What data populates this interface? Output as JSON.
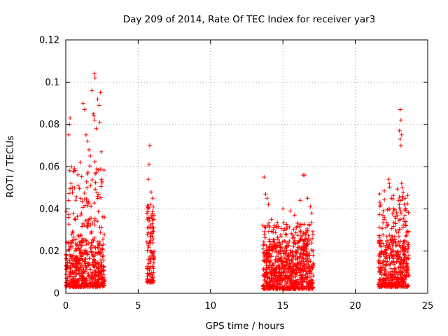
{
  "chart_data": {
    "type": "scatter",
    "title": "Day 209 of 2014, Rate Of TEC Index for receiver yar3",
    "xlabel": "GPS time / hours",
    "ylabel": "ROTI / TECUs",
    "xlim": [
      0,
      25
    ],
    "ylim": [
      0,
      0.12
    ],
    "xticks": [
      0,
      5,
      10,
      15,
      20,
      25
    ],
    "xtick_labels": [
      "0",
      "5",
      "10",
      "15",
      "20",
      "25"
    ],
    "yticks": [
      0,
      0.02,
      0.04,
      0.06,
      0.08,
      0.1,
      0.12
    ],
    "ytick_labels": [
      "0",
      "0.02",
      "0.04",
      "0.06",
      "0.08",
      "0.1",
      "0.12"
    ],
    "grid": true,
    "marker": "+",
    "color": "#ff0000",
    "series": [
      {
        "name": "ROTI",
        "clusters": [
          {
            "x_range": [
              0.0,
              2.7
            ],
            "dense_y": [
              0.003,
              0.025
            ],
            "peaks": [
              [
                0.3,
                0.083
              ],
              [
                0.25,
                0.08
              ],
              [
                0.2,
                0.075
              ],
              [
                0.4,
                0.06
              ],
              [
                0.6,
                0.059
              ],
              [
                1.0,
                0.062
              ],
              [
                1.2,
                0.09
              ],
              [
                1.3,
                0.087
              ],
              [
                1.4,
                0.075
              ],
              [
                1.5,
                0.072
              ],
              [
                1.6,
                0.068
              ],
              [
                1.7,
                0.065
              ],
              [
                1.8,
                0.096
              ],
              [
                1.9,
                0.085
              ],
              [
                1.95,
                0.084
              ],
              [
                2.0,
                0.082
              ],
              [
                1.98,
                0.104
              ],
              [
                2.02,
                0.102
              ],
              [
                2.1,
                0.078
              ],
              [
                2.2,
                0.092
              ],
              [
                2.3,
                0.089
              ],
              [
                2.4,
                0.095
              ],
              [
                2.35,
                0.081
              ],
              [
                2.45,
                0.067
              ],
              [
                2.5,
                0.053
              ],
              [
                0.35,
                0.052
              ],
              [
                0.45,
                0.05
              ]
            ]
          },
          {
            "x_range": [
              5.6,
              6.1
            ],
            "dense_y": [
              0.005,
              0.035
            ],
            "peaks": [
              [
                5.8,
                0.07
              ],
              [
                5.75,
                0.061
              ],
              [
                5.7,
                0.054
              ],
              [
                5.9,
                0.048
              ],
              [
                6.0,
                0.045
              ],
              [
                5.85,
                0.042
              ]
            ]
          },
          {
            "x_range": [
              13.6,
              17.1
            ],
            "dense_y": [
              0.002,
              0.022
            ],
            "peaks": [
              [
                13.7,
                0.055
              ],
              [
                13.8,
                0.047
              ],
              [
                13.9,
                0.045
              ],
              [
                14.0,
                0.042
              ],
              [
                15.0,
                0.04
              ],
              [
                15.5,
                0.039
              ],
              [
                15.8,
                0.037
              ],
              [
                16.4,
                0.056
              ],
              [
                16.5,
                0.056
              ],
              [
                16.7,
                0.045
              ],
              [
                16.9,
                0.041
              ],
              [
                17.0,
                0.038
              ],
              [
                14.2,
                0.035
              ],
              [
                16.2,
                0.044
              ]
            ]
          },
          {
            "x_range": [
              21.6,
              23.7
            ],
            "dense_y": [
              0.003,
              0.025
            ],
            "peaks": [
              [
                23.1,
                0.087
              ],
              [
                23.15,
                0.082
              ],
              [
                23.05,
                0.077
              ],
              [
                23.2,
                0.075
              ],
              [
                23.1,
                0.073
              ],
              [
                23.15,
                0.07
              ],
              [
                22.3,
                0.054
              ],
              [
                22.35,
                0.052
              ],
              [
                23.2,
                0.052
              ],
              [
                23.25,
                0.05
              ],
              [
                23.0,
                0.044
              ],
              [
                22.5,
                0.045
              ],
              [
                21.9,
                0.037
              ],
              [
                22.0,
                0.035
              ],
              [
                23.4,
                0.034
              ],
              [
                22.8,
                0.033
              ],
              [
                23.5,
                0.032
              ]
            ]
          }
        ]
      }
    ]
  }
}
